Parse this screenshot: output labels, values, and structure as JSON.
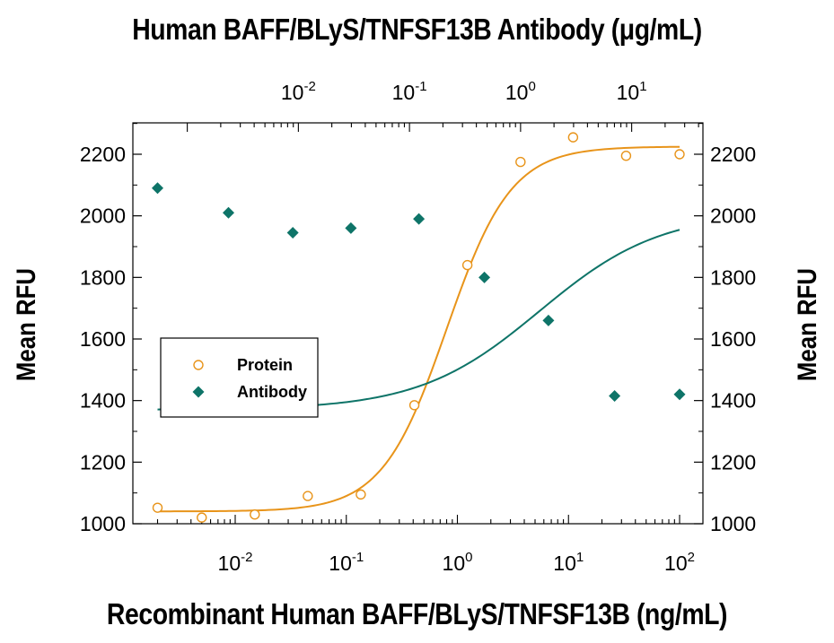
{
  "chart_data": {
    "type": "scatter",
    "title": "Human BAFF/BLyS/TNFSF13B Antibody (μg/mL)",
    "xlabel": "Recombinant Human BAFF/BLyS/TNFSF13B (ng/mL)",
    "ylabel": "Mean RFU",
    "y2label": "Mean RFU",
    "xscale": "log",
    "xlim": [
      0.0015,
      220
    ],
    "ylim": [
      1000,
      2300
    ],
    "yticks": [
      1000,
      1200,
      1400,
      1600,
      1800,
      2000,
      2200
    ],
    "x_tick_labels": [
      {
        "base": "10",
        "exp": "-2",
        "value": 0.01
      },
      {
        "base": "10",
        "exp": "-1",
        "value": 0.1
      },
      {
        "base": "10",
        "exp": "0",
        "value": 1
      },
      {
        "base": "10",
        "exp": "1",
        "value": 10
      },
      {
        "base": "10",
        "exp": "2",
        "value": 100
      }
    ],
    "top_axis": {
      "scale": "log",
      "x_at_bottom_1": 0.27,
      "tick_labels": [
        {
          "base": "10",
          "exp": "-2",
          "value": 0.01
        },
        {
          "base": "10",
          "exp": "-1",
          "value": 0.1
        },
        {
          "base": "10",
          "exp": "0",
          "value": 1
        },
        {
          "base": "10",
          "exp": "1",
          "value": 10
        }
      ]
    },
    "legend_position": "center-left",
    "grid": false,
    "series": [
      {
        "name": "Protein",
        "marker": "open-circle",
        "color": "#E8941A",
        "x": [
          0.002,
          0.005,
          0.015,
          0.045,
          0.135,
          0.41,
          1.23,
          3.7,
          11,
          33,
          100
        ],
        "y": [
          1052,
          1020,
          1030,
          1090,
          1095,
          1385,
          1840,
          2175,
          2255,
          2195,
          2200
        ],
        "fit": {
          "bottom": 1040,
          "top": 2225,
          "ec50": 0.8,
          "hill": 1.5
        }
      },
      {
        "name": "Antibody",
        "marker": "filled-diamond",
        "color": "#0E7468",
        "x": [
          0.002,
          0.0087,
          0.033,
          0.11,
          0.45,
          1.75,
          6.6,
          26,
          100
        ],
        "y": [
          2090,
          2010,
          1945,
          1960,
          1990,
          1800,
          1660,
          1415,
          1420
        ],
        "fit": {
          "bottom": 1370,
          "top": 2012,
          "ec50": 5.5,
          "hill": 0.8
        }
      }
    ]
  }
}
